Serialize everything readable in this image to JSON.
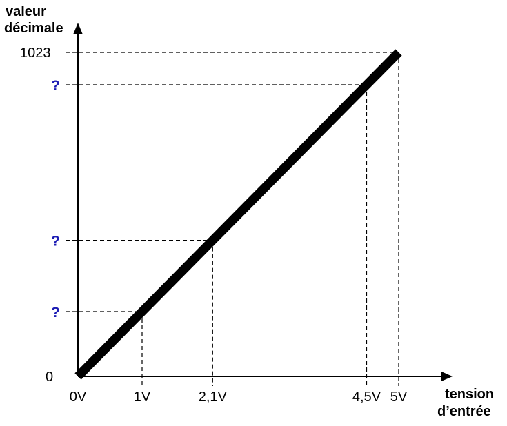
{
  "chart_data": {
    "type": "line",
    "title": "",
    "xlabel": [
      "tension",
      "d’entrée"
    ],
    "ylabel": [
      "valeur",
      "décimale"
    ],
    "xlim": [
      0,
      5
    ],
    "ylim": [
      0,
      1023
    ],
    "grid": false,
    "series": [
      {
        "x": [
          0,
          5
        ],
        "y": [
          0,
          1023
        ]
      }
    ],
    "x_ticks": [
      {
        "value": 0,
        "label": "0V"
      },
      {
        "value": 1,
        "label": "1V"
      },
      {
        "value": 2.1,
        "label": "2,1V"
      },
      {
        "value": 4.5,
        "label": "4,5V"
      },
      {
        "value": 5,
        "label": "5V"
      }
    ],
    "y_ticks": [
      {
        "value": 0,
        "label": "0"
      },
      {
        "value": 1023,
        "label": "1023"
      }
    ],
    "unknown_marks": [
      {
        "x": 1,
        "label": "?"
      },
      {
        "x": 2.1,
        "label": "?"
      },
      {
        "x": 4.5,
        "label": "?"
      }
    ],
    "colors": {
      "line": "#000000",
      "unknown": "#1c1cb4"
    }
  }
}
